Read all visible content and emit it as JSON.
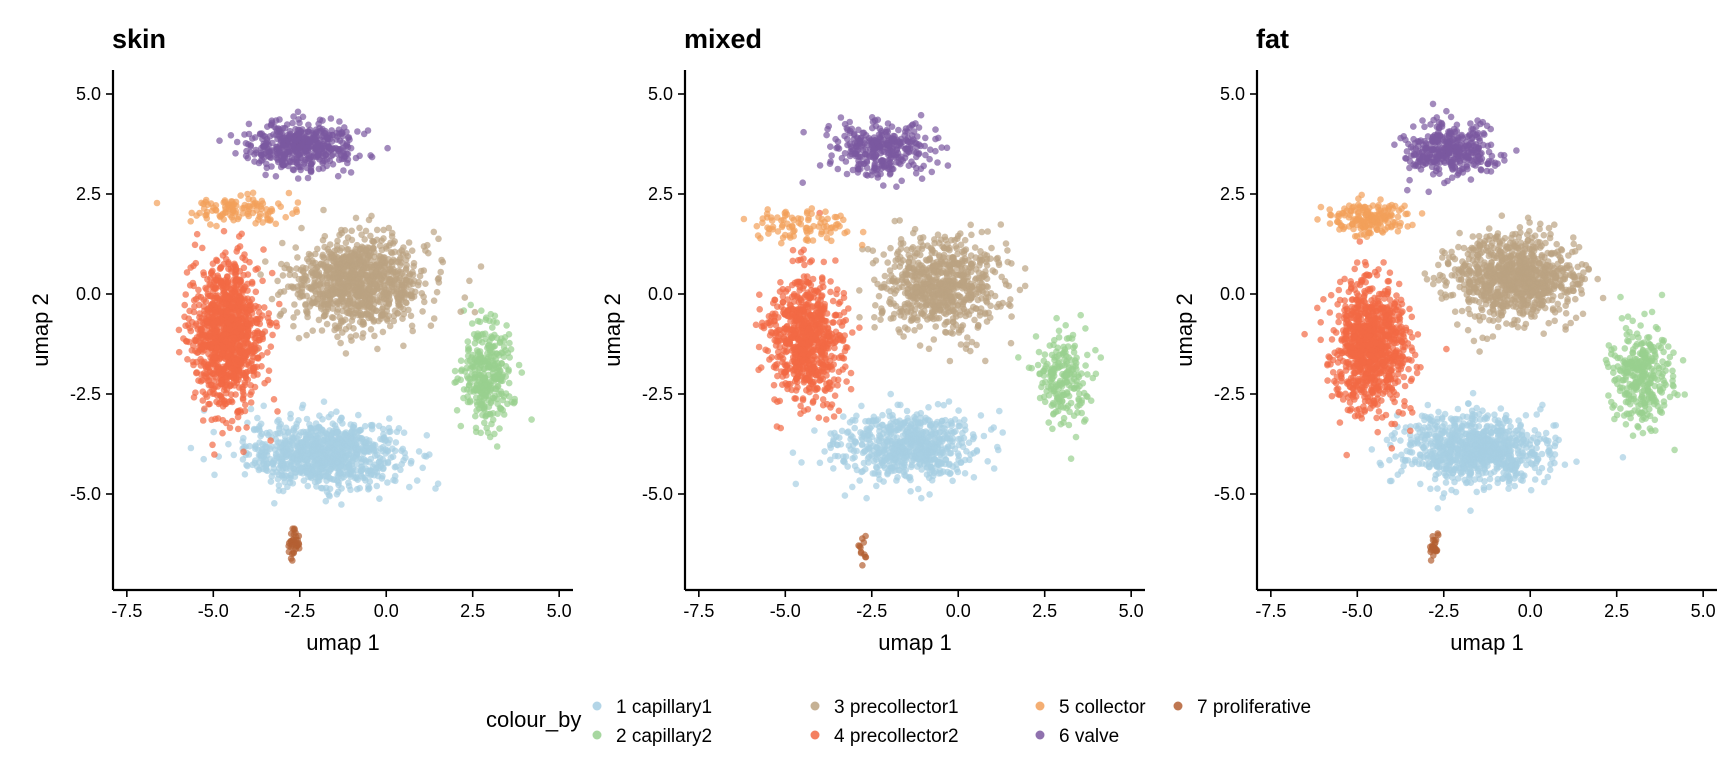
{
  "chart_data": [
    {
      "type": "scatter",
      "title": "skin",
      "xlabel": "umap 1",
      "ylabel": "umap 2",
      "xlim": [
        -7.9,
        5.4
      ],
      "ylim": [
        -7.4,
        5.6
      ],
      "xticks": [
        "-7.5",
        "-5.0",
        "-2.5",
        "0.0",
        "2.5",
        "5.0"
      ],
      "xtick_values": [
        -7.5,
        -5.0,
        -2.5,
        0.0,
        2.5,
        5.0
      ],
      "yticks": [
        "-5.0",
        "-2.5",
        "0.0",
        "2.5",
        "5.0"
      ],
      "ytick_values": [
        -5.0,
        -2.5,
        0.0,
        2.5,
        5.0
      ],
      "grid": false,
      "clusters": [
        {
          "label": "1 capillary1",
          "center": [
            -1.8,
            -4.0
          ],
          "spread": [
            2.0,
            0.75
          ],
          "n": 900
        },
        {
          "label": "2 capillary2",
          "center": [
            2.9,
            -2.0
          ],
          "spread": [
            0.7,
            1.2
          ],
          "n": 320
        },
        {
          "label": "3 precollector1",
          "center": [
            -0.8,
            0.3
          ],
          "spread": [
            1.7,
            1.0
          ],
          "n": 1000
        },
        {
          "label": "4 precollector2",
          "center": [
            -4.6,
            -1.0
          ],
          "spread": [
            0.95,
            1.55
          ],
          "n": 1100
        },
        {
          "label": "5 collector",
          "center": [
            -4.2,
            2.1
          ],
          "spread": [
            1.3,
            0.3
          ],
          "n": 110
        },
        {
          "label": "6 valve",
          "center": [
            -2.5,
            3.7
          ],
          "spread": [
            1.4,
            0.55
          ],
          "n": 450
        },
        {
          "label": "7 proliferative",
          "center": [
            -2.7,
            -6.2
          ],
          "spread": [
            0.18,
            0.35
          ],
          "n": 35
        }
      ]
    },
    {
      "type": "scatter",
      "title": "mixed",
      "xlabel": "umap 1",
      "ylabel": "umap 2",
      "xlim": [
        -7.9,
        5.4
      ],
      "ylim": [
        -7.4,
        5.6
      ],
      "xticks": [
        "-7.5",
        "-5.0",
        "-2.5",
        "0.0",
        "2.5",
        "5.0"
      ],
      "xtick_values": [
        -7.5,
        -5.0,
        -2.5,
        0.0,
        2.5,
        5.0
      ],
      "yticks": [
        "-5.0",
        "-2.5",
        "0.0",
        "2.5",
        "5.0"
      ],
      "ytick_values": [
        -5.0,
        -2.5,
        0.0,
        2.5,
        5.0
      ],
      "grid": false,
      "clusters": [
        {
          "label": "1 capillary1",
          "center": [
            -1.5,
            -3.8
          ],
          "spread": [
            1.8,
            0.75
          ],
          "n": 650
        },
        {
          "label": "2 capillary2",
          "center": [
            3.0,
            -2.1
          ],
          "spread": [
            0.7,
            1.0
          ],
          "n": 200
        },
        {
          "label": "3 precollector1",
          "center": [
            -0.5,
            0.2
          ],
          "spread": [
            1.6,
            1.1
          ],
          "n": 700
        },
        {
          "label": "4 precollector2",
          "center": [
            -4.4,
            -1.1
          ],
          "spread": [
            0.95,
            1.4
          ],
          "n": 750
        },
        {
          "label": "5 collector",
          "center": [
            -4.5,
            1.7
          ],
          "spread": [
            1.4,
            0.4
          ],
          "n": 90
        },
        {
          "label": "6 valve",
          "center": [
            -2.2,
            3.6
          ],
          "spread": [
            1.3,
            0.6
          ],
          "n": 320
        },
        {
          "label": "7 proliferative",
          "center": [
            -2.8,
            -6.3
          ],
          "spread": [
            0.12,
            0.3
          ],
          "n": 12
        }
      ]
    },
    {
      "type": "scatter",
      "title": "fat",
      "xlabel": "umap 1",
      "ylabel": "umap 2",
      "xlim": [
        -7.9,
        5.4
      ],
      "ylim": [
        -7.4,
        5.6
      ],
      "xticks": [
        "-7.5",
        "-5.0",
        "-2.5",
        "0.0",
        "2.5",
        "5.0"
      ],
      "xtick_values": [
        -7.5,
        -5.0,
        -2.5,
        0.0,
        2.5,
        5.0
      ],
      "yticks": [
        "-5.0",
        "-2.5",
        "0.0",
        "2.5",
        "5.0"
      ],
      "ytick_values": [
        -5.0,
        -2.5,
        0.0,
        2.5,
        5.0
      ],
      "grid": false,
      "clusters": [
        {
          "label": "1 capillary1",
          "center": [
            -1.6,
            -3.9
          ],
          "spread": [
            1.9,
            0.8
          ],
          "n": 850
        },
        {
          "label": "2 capillary2",
          "center": [
            3.2,
            -2.0
          ],
          "spread": [
            0.8,
            1.1
          ],
          "n": 320
        },
        {
          "label": "3 precollector1",
          "center": [
            -0.4,
            0.4
          ],
          "spread": [
            1.6,
            1.0
          ],
          "n": 900
        },
        {
          "label": "4 precollector2",
          "center": [
            -4.6,
            -1.3
          ],
          "spread": [
            0.95,
            1.4
          ],
          "n": 950
        },
        {
          "label": "5 collector",
          "center": [
            -4.6,
            1.9
          ],
          "spread": [
            0.9,
            0.4
          ],
          "n": 180
        },
        {
          "label": "6 valve",
          "center": [
            -2.3,
            3.6
          ],
          "spread": [
            1.2,
            0.6
          ],
          "n": 350
        },
        {
          "label": "7 proliferative",
          "center": [
            -2.8,
            -6.3
          ],
          "spread": [
            0.14,
            0.3
          ],
          "n": 25
        }
      ]
    }
  ],
  "legend": {
    "title": "colour_by",
    "placement": "bottom-center",
    "items": [
      {
        "label": "1 capillary1",
        "color": "#a6cee3"
      },
      {
        "label": "2 capillary2",
        "color": "#98d08f"
      },
      {
        "label": "3 precollector1",
        "color": "#bba381"
      },
      {
        "label": "4 precollector2",
        "color": "#f26a45"
      },
      {
        "label": "5 collector",
        "color": "#f2a05a"
      },
      {
        "label": "6 valve",
        "color": "#7b58a0"
      },
      {
        "label": "7 proliferative",
        "color": "#b45f32"
      }
    ]
  }
}
